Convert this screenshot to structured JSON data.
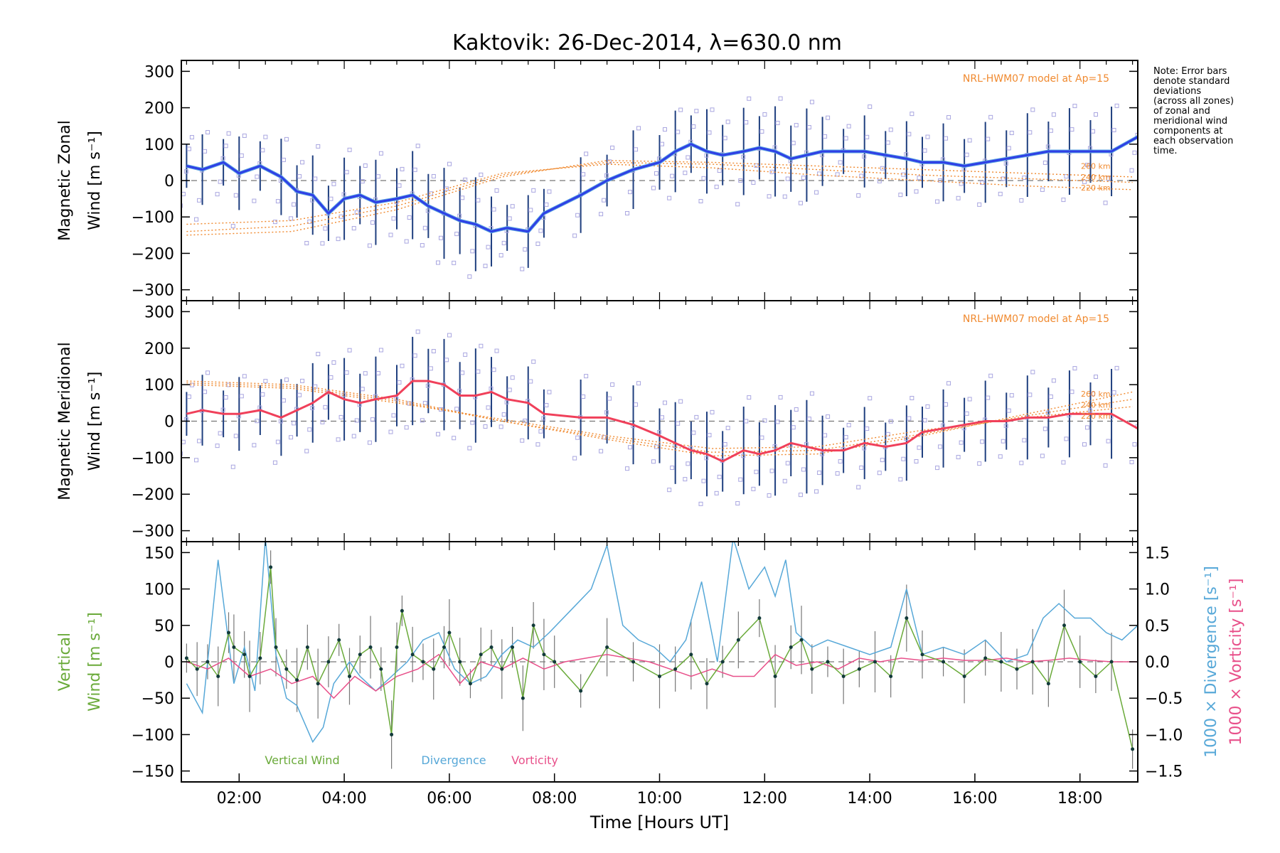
{
  "figure": {
    "title": "Kaktovik: 26-Dec-2014, λ=630.0 nm",
    "note_lines": [
      "Note: Error bars",
      "denote standard",
      "deviations",
      "(across all zones)",
      "of zonal and",
      "meridional wind",
      "components at",
      "each observation",
      "time."
    ],
    "colors": {
      "zonal_line": "#2f3fe6",
      "zonal_line_light": "#5aa3e0",
      "meridional_line": "#f0405a",
      "errorbar": "#1f3f7f",
      "scatter": "#a9a6e0",
      "hwm": "#f08a30",
      "vertical": "#6aaa3a",
      "divergence": "#57a8d8",
      "vorticity": "#e8508a",
      "grey": "#777777"
    }
  },
  "chart_data": [
    {
      "type": "line",
      "panel": "zonal",
      "ylabel_line1": "Magnetic Zonal",
      "ylabel_line2": "Wind [m s⁻¹]",
      "ylim": [
        -330,
        330
      ],
      "yticks": [
        300,
        200,
        100,
        0,
        -100,
        -200,
        -300
      ],
      "ytick_labels": [
        "300",
        "200",
        "100",
        "0",
        "−100",
        "−200",
        "−300"
      ],
      "xlim": [
        0.9,
        19.1
      ],
      "model_label": "NRL-HWM07 model at Ap=15",
      "altitude_labels": [
        "260 km",
        "240 km",
        "220 km"
      ],
      "altitude_label_y": [
        40,
        10,
        -20
      ],
      "series": [
        {
          "x": [
            1.0,
            1.3,
            1.7,
            2.0,
            2.4,
            2.8,
            3.1,
            3.4,
            3.7,
            4.0,
            4.3,
            4.6,
            5.0,
            5.3,
            5.6,
            5.9,
            6.2,
            6.5,
            6.8,
            7.1,
            7.5,
            7.8,
            8.5,
            9.0,
            9.5,
            10.0,
            10.3,
            10.6,
            10.9,
            11.2,
            11.6,
            11.9,
            12.2,
            12.5,
            12.8,
            13.1,
            13.5,
            13.9,
            14.3,
            14.7,
            15.0,
            15.4,
            15.8,
            16.2,
            16.6,
            17.0,
            17.4,
            17.8,
            18.2,
            18.6,
            19.1
          ],
          "y": [
            40,
            30,
            50,
            20,
            40,
            10,
            -30,
            -40,
            -90,
            -50,
            -40,
            -60,
            -50,
            -40,
            -70,
            -90,
            -110,
            -120,
            -140,
            -130,
            -140,
            -90,
            -40,
            0,
            30,
            50,
            80,
            100,
            80,
            70,
            80,
            90,
            80,
            60,
            70,
            80,
            80,
            80,
            70,
            60,
            50,
            50,
            40,
            50,
            60,
            70,
            80,
            80,
            80,
            80,
            120
          ]
        }
      ],
      "hwm_curves": [
        {
          "label": "260 km",
          "x": [
            1.0,
            3.0,
            5.0,
            7.0,
            9.0,
            11.0,
            13.0,
            15.0,
            17.0,
            19.0
          ],
          "y": [
            -150,
            -140,
            -80,
            10,
            55,
            50,
            40,
            30,
            20,
            10
          ]
        },
        {
          "label": "240 km",
          "x": [
            1.0,
            3.0,
            5.0,
            7.0,
            9.0,
            11.0,
            13.0,
            15.0,
            17.0,
            19.0
          ],
          "y": [
            -140,
            -125,
            -70,
            15,
            50,
            45,
            30,
            15,
            5,
            -5
          ]
        },
        {
          "label": "220 km",
          "x": [
            1.0,
            3.0,
            5.0,
            7.0,
            9.0,
            11.0,
            13.0,
            15.0,
            17.0,
            19.0
          ],
          "y": [
            -120,
            -110,
            -60,
            20,
            45,
            35,
            15,
            0,
            -15,
            -25
          ]
        }
      ]
    },
    {
      "type": "line",
      "panel": "meridional",
      "ylabel_line1": "Magnetic Meridional",
      "ylabel_line2": "Wind [m s⁻¹]",
      "ylim": [
        -330,
        330
      ],
      "yticks": [
        300,
        200,
        100,
        0,
        -100,
        -200,
        -300
      ],
      "ytick_labels": [
        "300",
        "200",
        "100",
        "0",
        "−100",
        "−200",
        "−300"
      ],
      "xlim": [
        0.9,
        19.1
      ],
      "model_label": "NRL-HWM07 model at Ap=15",
      "altitude_labels": [
        "260 km",
        "240 km",
        "220 km"
      ],
      "altitude_label_y": [
        75,
        45,
        15
      ],
      "series": [
        {
          "x": [
            1.0,
            1.3,
            1.7,
            2.0,
            2.4,
            2.8,
            3.1,
            3.4,
            3.7,
            4.0,
            4.3,
            4.6,
            5.0,
            5.3,
            5.6,
            5.9,
            6.2,
            6.5,
            6.8,
            7.1,
            7.5,
            7.8,
            8.5,
            9.0,
            9.5,
            10.0,
            10.3,
            10.6,
            10.9,
            11.2,
            11.6,
            11.9,
            12.2,
            12.5,
            12.8,
            13.1,
            13.5,
            13.9,
            14.3,
            14.7,
            15.0,
            15.4,
            15.8,
            16.2,
            16.6,
            17.0,
            17.4,
            17.8,
            18.2,
            18.6,
            19.1
          ],
          "y": [
            20,
            30,
            20,
            20,
            30,
            10,
            30,
            50,
            80,
            60,
            50,
            60,
            70,
            110,
            110,
            100,
            70,
            70,
            80,
            60,
            50,
            20,
            10,
            10,
            -10,
            -40,
            -60,
            -80,
            -90,
            -110,
            -80,
            -90,
            -80,
            -60,
            -70,
            -80,
            -80,
            -60,
            -70,
            -60,
            -30,
            -20,
            -10,
            0,
            0,
            10,
            10,
            20,
            20,
            20,
            -20
          ]
        }
      ],
      "hwm_curves": [
        {
          "label": "260 km",
          "x": [
            1.0,
            3.0,
            5.0,
            7.0,
            9.0,
            11.0,
            13.0,
            15.0,
            17.0,
            19.0
          ],
          "y": [
            110,
            100,
            60,
            0,
            -50,
            -95,
            -90,
            -40,
            20,
            80
          ]
        },
        {
          "label": "240 km",
          "x": [
            1.0,
            3.0,
            5.0,
            7.0,
            9.0,
            11.0,
            13.0,
            15.0,
            17.0,
            19.0
          ],
          "y": [
            105,
            95,
            55,
            0,
            -45,
            -85,
            -80,
            -35,
            15,
            60
          ]
        },
        {
          "label": "220 km",
          "x": [
            1.0,
            3.0,
            5.0,
            7.0,
            9.0,
            11.0,
            13.0,
            15.0,
            17.0,
            19.0
          ],
          "y": [
            100,
            90,
            50,
            5,
            -40,
            -75,
            -70,
            -25,
            10,
            40
          ]
        }
      ]
    },
    {
      "type": "line",
      "panel": "vertical",
      "ylabel_line1": "Vertical",
      "ylabel_line2": "Wind [m s⁻¹]",
      "ylabel_right_div": "1000 × Divergence [s⁻¹]",
      "ylabel_right_vort": "1000 × Vorticity [s⁻¹]",
      "ylim": [
        -165,
        165
      ],
      "yticks": [
        150,
        100,
        50,
        0,
        -50,
        -100,
        -150
      ],
      "ytick_labels": [
        "150",
        "100",
        "50",
        "0",
        "−50",
        "−100",
        "−150"
      ],
      "y2lim": [
        -1.65,
        1.65
      ],
      "y2ticks": [
        1.5,
        1.0,
        0.5,
        0.0,
        -0.5,
        -1.0,
        -1.5
      ],
      "y2tick_labels": [
        "1.5",
        "1.0",
        "0.5",
        "0.0",
        "−0.5",
        "−1.0",
        "−1.5"
      ],
      "xlim": [
        0.9,
        19.1
      ],
      "xticks": [
        2,
        4,
        6,
        8,
        10,
        12,
        14,
        16,
        18
      ],
      "xtick_labels": [
        "02:00",
        "04:00",
        "06:00",
        "08:00",
        "10:00",
        "12:00",
        "14:00",
        "16:00",
        "18:00"
      ],
      "xlabel": "Time [Hours UT]",
      "legend": [
        "Vertical Wind",
        "Divergence",
        "Vorticity"
      ],
      "series": [
        {
          "name": "Vertical Wind",
          "x": [
            1.0,
            1.2,
            1.4,
            1.6,
            1.8,
            1.9,
            2.1,
            2.2,
            2.4,
            2.6,
            2.7,
            2.9,
            3.1,
            3.3,
            3.5,
            3.7,
            3.9,
            4.1,
            4.3,
            4.5,
            4.7,
            4.9,
            5.0,
            5.1,
            5.3,
            5.5,
            5.7,
            5.9,
            6.0,
            6.2,
            6.4,
            6.6,
            6.8,
            7.0,
            7.2,
            7.4,
            7.6,
            7.8,
            8.0,
            8.5,
            9.0,
            9.5,
            10.0,
            10.3,
            10.6,
            10.9,
            11.2,
            11.5,
            11.9,
            12.2,
            12.5,
            12.7,
            12.9,
            13.2,
            13.5,
            13.8,
            14.1,
            14.4,
            14.7,
            15.0,
            15.4,
            15.8,
            16.2,
            16.5,
            16.8,
            17.1,
            17.4,
            17.7,
            18.0,
            18.3,
            18.6,
            19.0
          ],
          "y": [
            5,
            -10,
            0,
            -20,
            40,
            20,
            10,
            -20,
            5,
            130,
            20,
            -10,
            -25,
            20,
            -30,
            0,
            30,
            -20,
            10,
            20,
            -10,
            -100,
            20,
            70,
            10,
            0,
            -10,
            20,
            40,
            0,
            -30,
            10,
            20,
            -10,
            20,
            -50,
            50,
            10,
            0,
            -40,
            20,
            0,
            -20,
            -10,
            10,
            -30,
            0,
            30,
            60,
            -20,
            20,
            30,
            -10,
            0,
            -20,
            -10,
            0,
            -20,
            60,
            10,
            0,
            -20,
            5,
            0,
            -10,
            0,
            -30,
            50,
            0,
            -20,
            0,
            -120
          ]
        },
        {
          "name": "Divergence",
          "axis": "right",
          "x": [
            1.0,
            1.3,
            1.6,
            1.9,
            2.1,
            2.3,
            2.5,
            2.7,
            2.9,
            3.1,
            3.4,
            3.6,
            3.8,
            4.1,
            4.3,
            4.6,
            4.9,
            5.2,
            5.5,
            5.8,
            6.1,
            6.4,
            6.7,
            7.0,
            7.3,
            7.6,
            7.9,
            8.3,
            8.7,
            9.0,
            9.3,
            9.6,
            9.9,
            10.2,
            10.5,
            10.8,
            11.1,
            11.4,
            11.7,
            12.0,
            12.2,
            12.4,
            12.6,
            12.9,
            13.2,
            13.6,
            14.0,
            14.4,
            14.7,
            15.0,
            15.4,
            15.8,
            16.2,
            16.6,
            17.0,
            17.3,
            17.6,
            17.9,
            18.2,
            18.5,
            18.8,
            19.1
          ],
          "y": [
            -0.3,
            -0.7,
            1.4,
            -0.3,
            0.2,
            -0.4,
            1.7,
            0.1,
            -0.5,
            -0.6,
            -1.1,
            -0.9,
            -0.3,
            0.0,
            -0.2,
            -0.4,
            -0.2,
            0.0,
            0.3,
            0.4,
            -0.1,
            -0.3,
            -0.2,
            0.1,
            0.3,
            0.2,
            0.4,
            0.7,
            1.0,
            1.6,
            0.5,
            0.3,
            0.2,
            0.0,
            0.3,
            1.1,
            0.0,
            1.7,
            1.0,
            1.3,
            0.9,
            1.4,
            0.4,
            0.2,
            0.3,
            0.2,
            0.1,
            0.2,
            1.0,
            0.1,
            0.2,
            0.1,
            0.3,
            0.0,
            0.1,
            0.6,
            0.8,
            0.6,
            0.6,
            0.4,
            0.3,
            0.5
          ]
        },
        {
          "name": "Vorticity",
          "axis": "right",
          "x": [
            1.0,
            1.4,
            1.8,
            2.2,
            2.6,
            3.0,
            3.4,
            3.8,
            4.2,
            4.6,
            5.0,
            5.4,
            5.8,
            6.2,
            6.6,
            7.0,
            7.4,
            7.8,
            8.2,
            8.6,
            9.0,
            9.4,
            9.8,
            10.2,
            10.6,
            11.0,
            11.4,
            11.8,
            12.2,
            12.6,
            13.0,
            13.4,
            13.8,
            14.2,
            14.6,
            15.0,
            15.4,
            15.8,
            16.2,
            16.6,
            17.0,
            17.4,
            17.8,
            18.2,
            18.6,
            19.1
          ],
          "y": [
            0.0,
            -0.1,
            0.05,
            -0.2,
            -0.1,
            -0.3,
            -0.2,
            -0.5,
            -0.2,
            -0.4,
            -0.2,
            -0.1,
            0.1,
            -0.3,
            0.0,
            -0.1,
            0.05,
            -0.1,
            0.0,
            0.05,
            0.1,
            0.05,
            0.0,
            -0.1,
            -0.2,
            -0.1,
            -0.2,
            -0.2,
            0.1,
            -0.05,
            0.0,
            -0.1,
            0.05,
            0.0,
            0.05,
            0.02,
            0.05,
            0.02,
            0.02,
            0.05,
            0.0,
            0.02,
            0.05,
            0.02,
            0.0,
            0.0
          ]
        }
      ]
    }
  ]
}
